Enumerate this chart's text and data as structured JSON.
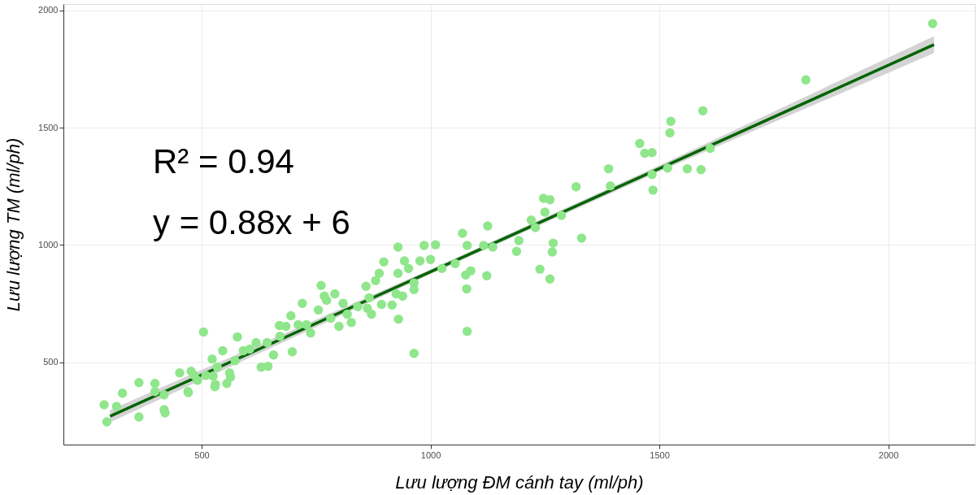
{
  "chart_data": {
    "type": "scatter",
    "xlabel": "Lưu lượng ĐM cánh tay (ml/ph)",
    "ylabel": "Lưu lượng TM (ml/ph)",
    "annotations": [
      "R² = 0.94",
      "y = 0.88x + 6"
    ],
    "xlim": [
      198,
      2189
    ],
    "ylim": [
      149,
      2027
    ],
    "xticks": [
      500,
      1000,
      1500,
      2000
    ],
    "yticks": [
      500,
      1000,
      1500,
      2000
    ],
    "grid": true,
    "series": [
      {
        "color": "#8fe68b",
        "marker": "circle",
        "x": [
          287,
          293,
          314,
          327,
          363,
          363,
          398,
          398,
          418,
          418,
          420,
          452,
          470,
          477,
          484,
          491,
          504,
          509,
          523,
          525,
          530,
          534,
          546,
          555,
          561,
          573,
          578,
          591,
          605,
          619,
          630,
          643,
          657,
          671,
          684,
          698,
          711,
          720,
          729,
          738,
          755,
          773,
          782,
          791,
          800,
          809,
          818,
          827,
          841,
          862,
          866,
          871,
          695,
          670,
          645,
          563,
          529,
          471,
          929,
          986,
          1011,
          1070,
          1125,
          1080,
          1116,
          1136,
          1193,
          1188,
          977,
          1000,
          1025,
          1054,
          1077,
          1088,
          1123,
          1079,
          1080,
          964,
          898,
          943,
          888,
          929,
          952,
          964,
          964,
          859,
          880,
          925,
          939,
          930,
          916,
          893,
          761,
          768,
          1595,
          1525,
          1523,
          1457,
          1468,
          1484,
          1389,
          1518,
          1561,
          1591,
          1611,
          1484,
          1486,
          1318,
          1393,
          1247,
          1261,
          1250,
          1286,
          1220,
          1229,
          1268,
          1266,
          1330,
          1239,
          1261,
          1820,
          2097
        ],
        "values": [
          319,
          246,
          312,
          368,
          413,
          267,
          410,
          375,
          361,
          298,
          284,
          455,
          375,
          462,
          444,
          423,
          629,
          444,
          514,
          441,
          406,
          479,
          549,
          410,
          455,
          507,
          608,
          549,
          556,
          584,
          479,
          584,
          531,
          611,
          653,
          545,
          660,
          751,
          660,
          625,
          723,
          764,
          688,
          792,
          653,
          751,
          705,
          670,
          737,
          730,
          775,
          705,
          698,
          657,
          483,
          437,
          396,
          371,
          991,
          998,
          1001,
          1050,
          1081,
          998,
          998,
          991,
          1019,
          973,
          932,
          938,
          900,
          921,
          872,
          890,
          869,
          813,
          632,
          538,
          928,
          932,
          879,
          879,
          900,
          838,
          810,
          824,
          848,
          792,
          782,
          684,
          744,
          747,
          827,
          782,
          1572,
          1527,
          1478,
          1433,
          1391,
          1394,
          1325,
          1328,
          1325,
          1321,
          1412,
          1300,
          1234,
          1248,
          1252,
          1199,
          1193,
          1140,
          1126,
          1106,
          1074,
          1008,
          970,
          1029,
          897,
          855,
          1704,
          1944
        ]
      },
      {
        "type": "line",
        "color": "#006400",
        "x": [
          300,
          1000,
          1500,
          2100
        ],
        "values": [
          270,
          886,
          1326,
          1854
        ],
        "lower": [
          244,
          876,
          1313,
          1818
        ],
        "upper": [
          296,
          896,
          1339,
          1890
        ]
      }
    ]
  }
}
